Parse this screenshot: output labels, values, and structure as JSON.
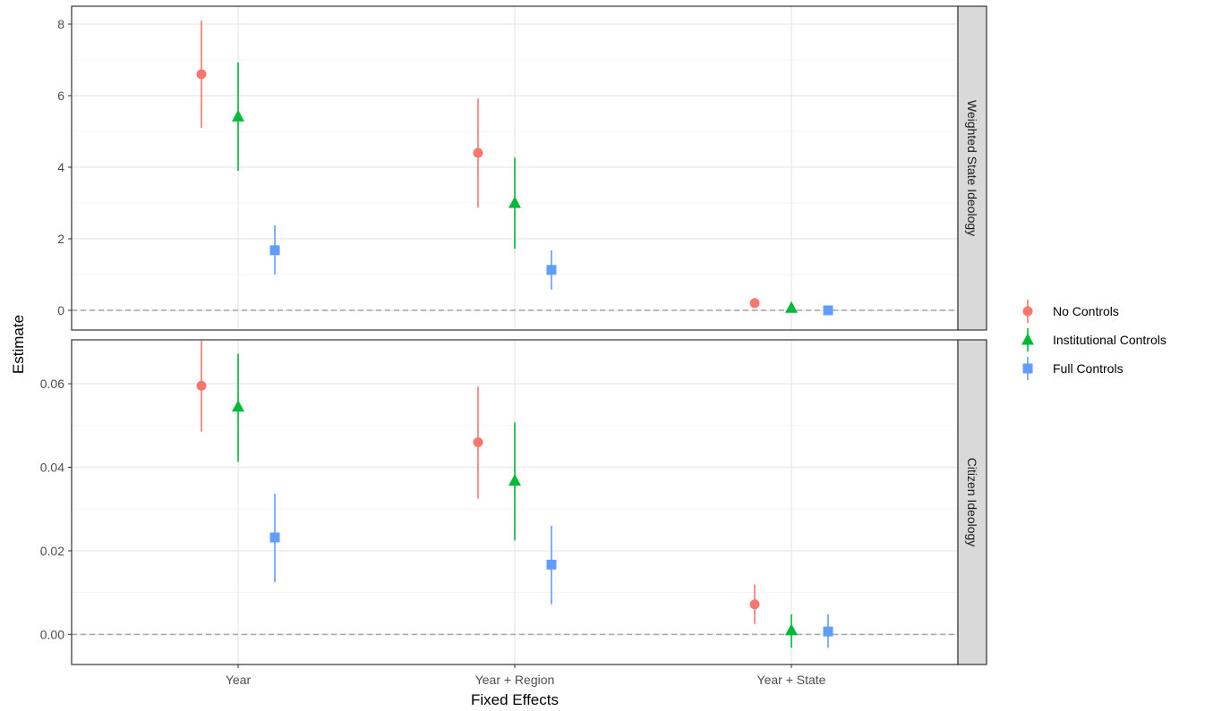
{
  "chart_data": {
    "type": "scatter",
    "subtype": "point-range (faceted coefficient plot)",
    "xlabel": "Fixed Effects",
    "ylabel": "Estimate",
    "categories": [
      "Year",
      "Year + Region",
      "Year + State"
    ],
    "legend": {
      "position": "right",
      "entries": [
        {
          "name": "No Controls",
          "color": "#F8766D",
          "shape": "circle"
        },
        {
          "name": "Institutional Controls",
          "color": "#00BA38",
          "shape": "triangle"
        },
        {
          "name": "Full Controls",
          "color": "#619CFF",
          "shape": "square"
        }
      ]
    },
    "grid": true,
    "reference_line": {
      "y": 0,
      "style": "dashed",
      "color": "#a6a6a6"
    },
    "panels": [
      {
        "strip_label": "Weighted State Ideology",
        "ylim": [
          -0.55,
          8.5
        ],
        "yticks": [
          0,
          2,
          4,
          6,
          8
        ],
        "ytick_labels": [
          "0",
          "2",
          "4",
          "6",
          "8"
        ],
        "series": [
          {
            "name": "No Controls",
            "estimate": [
              6.6,
              4.4,
              0.2
            ],
            "lower": [
              5.1,
              2.87,
              0.07
            ],
            "upper": [
              8.1,
              5.92,
              0.35
            ]
          },
          {
            "name": "Institutional Controls",
            "estimate": [
              5.42,
              3.0,
              0.07
            ],
            "lower": [
              3.9,
              1.72,
              0.0
            ],
            "upper": [
              6.93,
              4.27,
              0.15
            ]
          },
          {
            "name": "Full Controls",
            "estimate": [
              1.68,
              1.13,
              0.0
            ],
            "lower": [
              1.0,
              0.58,
              -0.06
            ],
            "upper": [
              2.38,
              1.68,
              0.06
            ]
          }
        ]
      },
      {
        "strip_label": "Citizen Ideology",
        "ylim": [
          -0.0072,
          0.0705
        ],
        "yticks": [
          0.0,
          0.02,
          0.04,
          0.06
        ],
        "ytick_labels": [
          "0.00",
          "0.02",
          "0.04",
          "0.06"
        ],
        "series": [
          {
            "name": "No Controls",
            "estimate": [
              0.0595,
              0.046,
              0.0072
            ],
            "lower": [
              0.0485,
              0.0325,
              0.0025
            ],
            "upper": [
              0.0703,
              0.0593,
              0.012
            ]
          },
          {
            "name": "Institutional Controls",
            "estimate": [
              0.0545,
              0.0368,
              0.001
            ],
            "lower": [
              0.0413,
              0.0225,
              -0.0032
            ],
            "upper": [
              0.0672,
              0.0507,
              0.0048
            ]
          },
          {
            "name": "Full Controls",
            "estimate": [
              0.0232,
              0.0167,
              0.0007
            ],
            "lower": [
              0.0125,
              0.0072,
              -0.0032
            ],
            "upper": [
              0.0337,
              0.026,
              0.0048
            ]
          }
        ]
      }
    ]
  }
}
